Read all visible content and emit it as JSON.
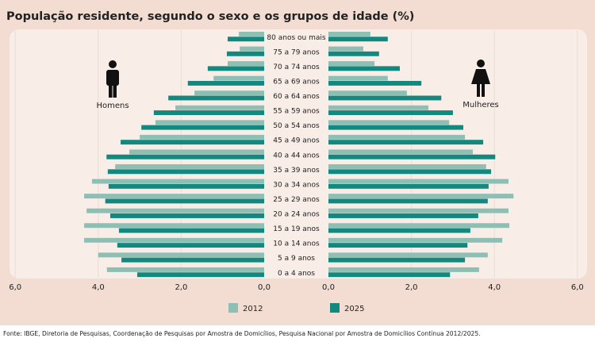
{
  "chart_data": {
    "type": "bar",
    "orientation": "horizontal-pyramid",
    "title": "População residente, segundo o sexo e os grupos de idade (%)",
    "categories": [
      "80 anos ou mais",
      "75 a 79 anos",
      "70 a 74 anos",
      "65 a 69 anos",
      "60 a 64 anos",
      "55 a 59 anos",
      "50 a 54 anos",
      "45 a 49 anos",
      "40 a 44 anos",
      "35 a 39 anos",
      "30 a 34 anos",
      "25 a 29 anos",
      "20 a 24 anos",
      "15 a 19 anos",
      "10 a 14 anos",
      "5 a 9 anos",
      "0 a 4 anos"
    ],
    "groups": [
      {
        "name": "Homens",
        "series": [
          {
            "name": "2012",
            "values": [
              0.61,
              0.59,
              0.88,
              1.22,
              1.68,
              2.14,
              2.62,
              3.0,
              3.25,
              3.59,
              4.15,
              4.34,
              4.28,
              4.34,
              4.34,
              4.0,
              3.79
            ]
          },
          {
            "name": "2025",
            "values": [
              0.88,
              0.9,
              1.36,
              1.84,
              2.31,
              2.66,
              2.96,
              3.46,
              3.8,
              3.77,
              3.75,
              3.83,
              3.71,
              3.5,
              3.54,
              3.44,
              3.06
            ]
          }
        ]
      },
      {
        "name": "Mulheres",
        "series": [
          {
            "name": "2012",
            "values": [
              1.01,
              0.84,
              1.11,
              1.43,
              1.89,
              2.41,
              2.91,
              3.29,
              3.48,
              3.8,
              4.34,
              4.46,
              4.34,
              4.36,
              4.19,
              3.84,
              3.63
            ]
          },
          {
            "name": "2025",
            "values": [
              1.43,
              1.22,
              1.72,
              2.24,
              2.72,
              3.0,
              3.25,
              3.73,
              4.02,
              3.92,
              3.86,
              3.84,
              3.61,
              3.42,
              3.35,
              3.29,
              2.93
            ]
          }
        ]
      }
    ],
    "left_ticks": [
      "6,0",
      "4,0",
      "2,0",
      "0,0"
    ],
    "right_ticks": [
      "0,0",
      "2,0",
      "4,0",
      "6,0"
    ],
    "xlim": [
      0,
      6
    ],
    "grid": true,
    "legend": [
      "2012",
      "2025"
    ],
    "legend_position": "bottom",
    "colors": {
      "2012": "#8ebfb5",
      "2025": "#12887e"
    }
  },
  "labels": {
    "men": "Homens",
    "women": "Mulheres"
  },
  "footer": "Fonte: IBGE, Diretoria de Pesquisas, Coordenação de Pesquisas por Amostra de Domicílios, Pesquisa Nacional por Amostra de Domicílios Contínua 2012/2025."
}
